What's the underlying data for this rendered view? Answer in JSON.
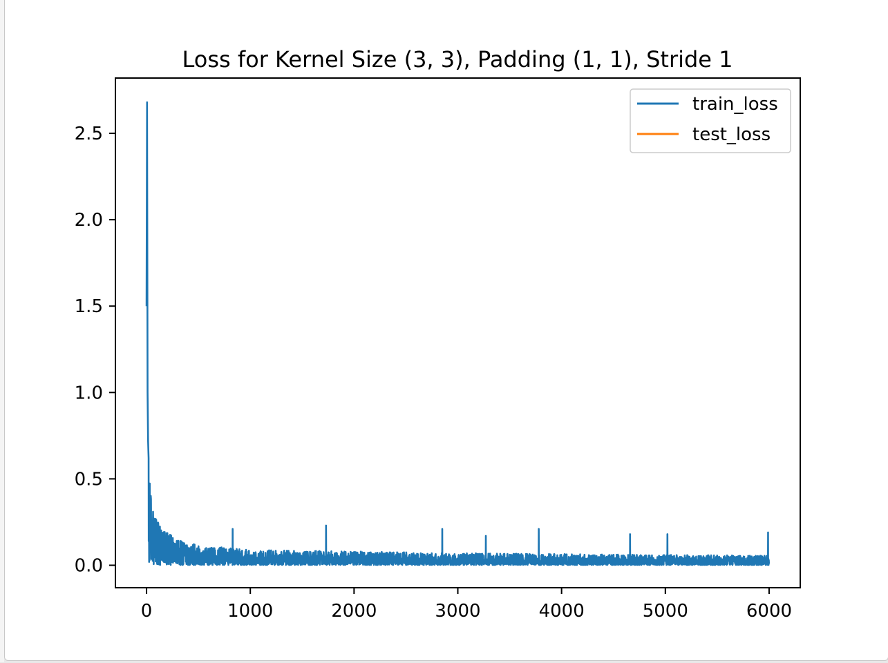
{
  "chart_data": {
    "type": "line",
    "title": "Loss for Kernel Size (3, 3), Padding (1, 1), Stride 1",
    "xlabel": "",
    "ylabel": "",
    "xlim": [
      -300,
      6300
    ],
    "ylim": [
      -0.13,
      2.82
    ],
    "xticks": [
      0,
      1000,
      2000,
      3000,
      4000,
      5000,
      6000
    ],
    "xtick_labels": [
      "0",
      "1000",
      "2000",
      "3000",
      "4000",
      "5000",
      "6000"
    ],
    "yticks": [
      0.0,
      0.5,
      1.0,
      1.5,
      2.0,
      2.5
    ],
    "ytick_labels": [
      "0.0",
      "0.5",
      "1.0",
      "1.5",
      "2.0",
      "2.5"
    ],
    "grid": false,
    "legend_position": "top-right",
    "series": [
      {
        "name": "train_loss",
        "color": "#1f77b4",
        "x": [
          0,
          5,
          10,
          15,
          20,
          30,
          40,
          60,
          80,
          100,
          150,
          200,
          300,
          400,
          500,
          600,
          800,
          1000,
          1500,
          2000,
          2500,
          3000,
          3500,
          4000,
          4500,
          5000,
          5500,
          6000
        ],
        "values": [
          1.5,
          2.68,
          1.0,
          0.72,
          0.62,
          0.5,
          0.44,
          0.37,
          0.3,
          0.26,
          0.21,
          0.19,
          0.15,
          0.13,
          0.12,
          0.11,
          0.1,
          0.09,
          0.085,
          0.08,
          0.075,
          0.07,
          0.068,
          0.065,
          0.062,
          0.06,
          0.058,
          0.055
        ],
        "spikes": [
          {
            "x": 830,
            "y": 0.21
          },
          {
            "x": 1730,
            "y": 0.23
          },
          {
            "x": 2850,
            "y": 0.21
          },
          {
            "x": 3270,
            "y": 0.17
          },
          {
            "x": 3780,
            "y": 0.21
          },
          {
            "x": 4660,
            "y": 0.18
          },
          {
            "x": 5020,
            "y": 0.18
          },
          {
            "x": 5990,
            "y": 0.19
          }
        ]
      },
      {
        "name": "test_loss",
        "color": "#ff7f0e",
        "x": [],
        "values": []
      }
    ]
  }
}
